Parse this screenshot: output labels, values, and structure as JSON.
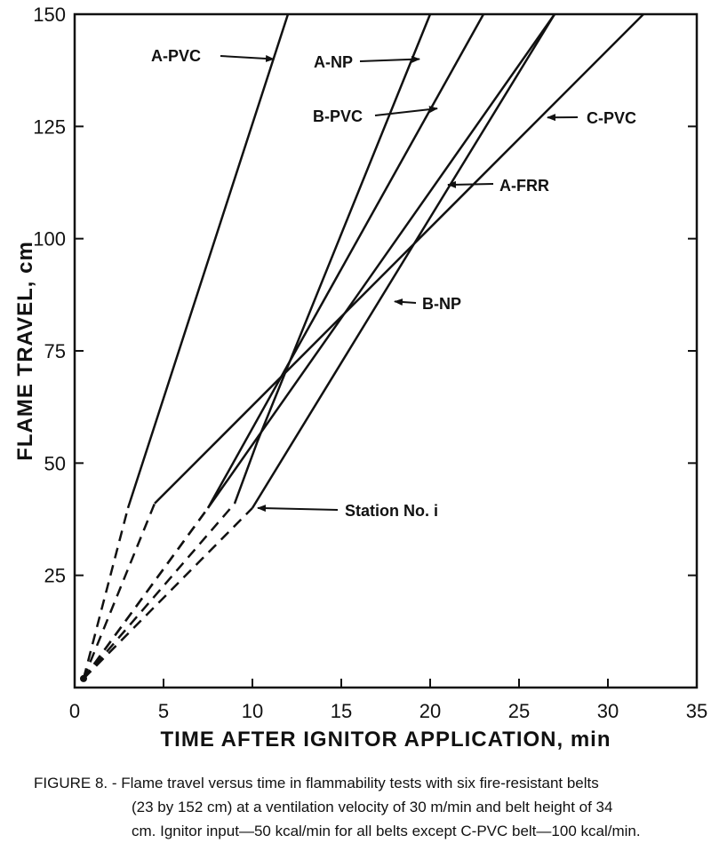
{
  "chart_data": {
    "type": "line",
    "xlabel": "TIME AFTER IGNITOR APPLICATION, min",
    "ylabel": "FLAME TRAVEL, cm",
    "xlim": [
      0,
      35
    ],
    "ylim": [
      0,
      150
    ],
    "xticks": [
      0,
      5,
      10,
      15,
      20,
      25,
      30,
      35
    ],
    "yticks": [
      25,
      50,
      75,
      100,
      125,
      150
    ],
    "grid": false,
    "series": [
      {
        "name": "A-PVC",
        "dashed": [
          [
            0.5,
            2
          ],
          [
            3,
            40
          ]
        ],
        "solid": [
          [
            3,
            40
          ],
          [
            12,
            150
          ]
        ]
      },
      {
        "name": "A-NP",
        "dashed": [
          [
            0.5,
            2
          ],
          [
            9,
            41
          ]
        ],
        "solid": [
          [
            9,
            41
          ],
          [
            10.3,
            55
          ],
          [
            20,
            150
          ]
        ]
      },
      {
        "name": "B-PVC",
        "dashed": [
          [
            0.5,
            2
          ],
          [
            7.5,
            40
          ]
        ],
        "solid": [
          [
            7.5,
            40
          ],
          [
            23,
            150
          ]
        ]
      },
      {
        "name": "A-FRR",
        "dashed": [
          [
            0.5,
            2
          ],
          [
            7.5,
            40
          ]
        ],
        "solid": [
          [
            7.5,
            40
          ],
          [
            27,
            150
          ]
        ]
      },
      {
        "name": "B-NP",
        "dashed": [
          [
            0.5,
            2
          ],
          [
            10,
            40
          ]
        ],
        "solid": [
          [
            10,
            40
          ],
          [
            27,
            150
          ]
        ]
      },
      {
        "name": "C-PVC",
        "dashed": [
          [
            0.5,
            2
          ],
          [
            4.5,
            41
          ]
        ],
        "solid": [
          [
            4.5,
            41
          ],
          [
            32,
            150
          ]
        ]
      }
    ],
    "annotations": [
      {
        "text": "A-PVC",
        "point": [
          11.2,
          140
        ]
      },
      {
        "text": "A-NP",
        "point": [
          19.4,
          140
        ]
      },
      {
        "text": "B-PVC",
        "point": [
          20.4,
          129
        ]
      },
      {
        "text": "C-PVC",
        "point": [
          26.6,
          127
        ]
      },
      {
        "text": "A-FRR",
        "point": [
          21,
          112
        ]
      },
      {
        "text": "B-NP",
        "point": [
          18,
          86
        ]
      },
      {
        "text": "Station No. i",
        "point": [
          10.3,
          40
        ]
      }
    ]
  },
  "caption": {
    "line1": "FIGURE 8. - Flame travel versus time in flammability tests with six fire-resistant belts",
    "line2": "(23 by 152 cm) at a ventilation velocity of 30 m/min and belt height of 34",
    "line3": "cm. Ignitor input—50 kcal/min for all belts except C-PVC belt—100 kcal/min."
  }
}
